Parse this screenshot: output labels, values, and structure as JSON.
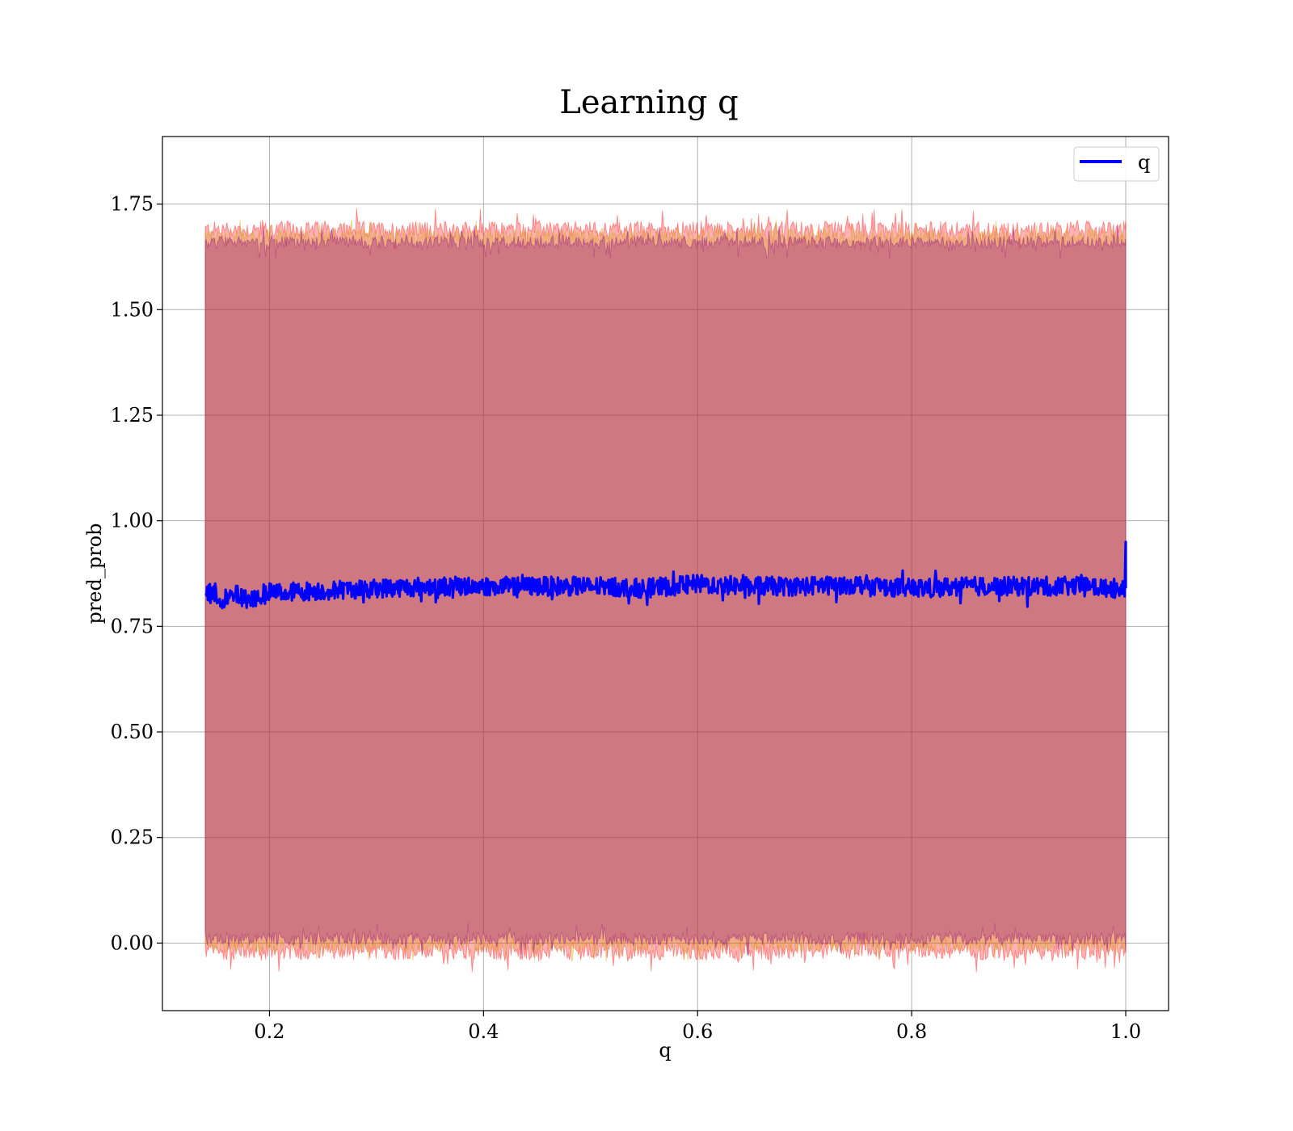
{
  "chart_data": {
    "type": "line",
    "title": "Learning q",
    "xlabel": "q",
    "ylabel": "pred_prob",
    "xlim": [
      0.1,
      1.04
    ],
    "ylim": [
      -0.16,
      1.91
    ],
    "x_ticks": [
      "0.2",
      "0.4",
      "0.6",
      "0.8",
      "1.0"
    ],
    "x_tick_values": [
      0.2,
      0.4,
      0.6,
      0.8,
      1.0
    ],
    "y_ticks": [
      "0.00",
      "0.25",
      "0.50",
      "0.75",
      "1.00",
      "1.25",
      "1.50",
      "1.75"
    ],
    "y_tick_values": [
      0.0,
      0.25,
      0.5,
      0.75,
      1.0,
      1.25,
      1.5,
      1.75
    ],
    "grid": true,
    "legend": {
      "placement": "top-right",
      "entries": [
        {
          "label": "q",
          "color": "#0000ff"
        }
      ]
    },
    "x_range": [
      0.14,
      1.0
    ],
    "series": [
      {
        "name": "q",
        "color": "#0000ff",
        "x": [
          0.14,
          0.15,
          0.16,
          0.17,
          0.18,
          0.19,
          0.2,
          0.25,
          0.3,
          0.35,
          0.4,
          0.45,
          0.5,
          0.55,
          0.6,
          0.65,
          0.7,
          0.75,
          0.8,
          0.85,
          0.9,
          0.95,
          0.999,
          1.0
        ],
        "y": [
          0.835,
          0.82,
          0.815,
          0.825,
          0.815,
          0.82,
          0.83,
          0.835,
          0.84,
          0.845,
          0.845,
          0.845,
          0.845,
          0.84,
          0.85,
          0.845,
          0.845,
          0.85,
          0.84,
          0.845,
          0.845,
          0.845,
          0.84,
          0.95
        ]
      }
    ],
    "bands": [
      {
        "color": "#ff0000",
        "opacity": 0.3,
        "upper": 1.69,
        "lower": -0.02,
        "noise": 0.02
      },
      {
        "color": "#d4a017",
        "opacity": 0.3,
        "upper": 1.675,
        "lower": -0.005,
        "noise": 0.015
      },
      {
        "color": "#800080",
        "opacity": 0.3,
        "upper": 1.66,
        "lower": 0.01,
        "noise": 0.015
      }
    ]
  }
}
